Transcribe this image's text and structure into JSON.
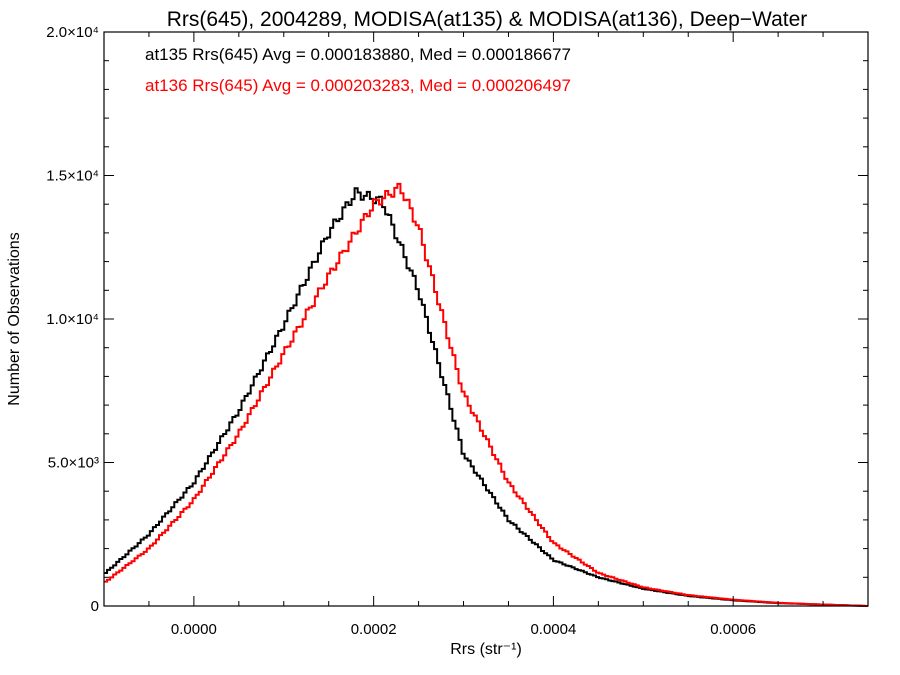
{
  "chart_data": {
    "type": "line",
    "title": "Rrs(645), 2004289, MODISA(at135) & MODISA(at136), Deep−Water",
    "xlabel": "Rrs (str⁻¹)",
    "ylabel": "Number of Observations",
    "xlim": [
      -0.0001,
      0.00075
    ],
    "ylim": [
      0,
      20000
    ],
    "x_ticks": [
      {
        "value": 0.0,
        "label": "0.0000"
      },
      {
        "value": 0.0002,
        "label": "0.0002"
      },
      {
        "value": 0.0004,
        "label": "0.0004"
      },
      {
        "value": 0.0006,
        "label": "0.0006"
      }
    ],
    "y_ticks": [
      {
        "value": 0,
        "label": "0"
      },
      {
        "value": 5000,
        "label": "5.0×10³"
      },
      {
        "value": 10000,
        "label": "1.0×10⁴"
      },
      {
        "value": 15000,
        "label": "1.5×10⁴"
      },
      {
        "value": 20000,
        "label": "2.0×10⁴"
      }
    ],
    "grid": false,
    "annotations": [
      "at135 Rrs(645) Avg = 0.000183880, Med = 0.000186677",
      "at136 Rrs(645) Avg = 0.000203283, Med = 0.000206497"
    ],
    "series": [
      {
        "color": "#000000",
        "x": [
          -0.0001,
          -5e-05,
          0.0,
          5e-05,
          0.0001,
          0.00015,
          0.00018,
          0.00021,
          0.00025,
          0.0003,
          0.00035,
          0.0004,
          0.00045,
          0.0005,
          0.00055,
          0.0006,
          0.00065,
          0.0007,
          0.00075
        ],
        "y": [
          1100,
          2500,
          4300,
          6800,
          9800,
          13000,
          14400,
          14100,
          11000,
          5300,
          3000,
          1600,
          1000,
          600,
          350,
          200,
          100,
          50,
          0
        ]
      },
      {
        "color": "#ff0000",
        "x": [
          -0.0001,
          -5e-05,
          0.0,
          5e-05,
          0.0001,
          0.00015,
          0.0002,
          0.00023,
          0.00025,
          0.0003,
          0.00035,
          0.0004,
          0.00045,
          0.0005,
          0.00055,
          0.0006,
          0.00065,
          0.0007,
          0.00075
        ],
        "y": [
          800,
          2000,
          3700,
          6000,
          8800,
          11500,
          14000,
          14600,
          13200,
          7400,
          4300,
          2200,
          1150,
          650,
          380,
          220,
          110,
          50,
          0
        ]
      }
    ]
  }
}
